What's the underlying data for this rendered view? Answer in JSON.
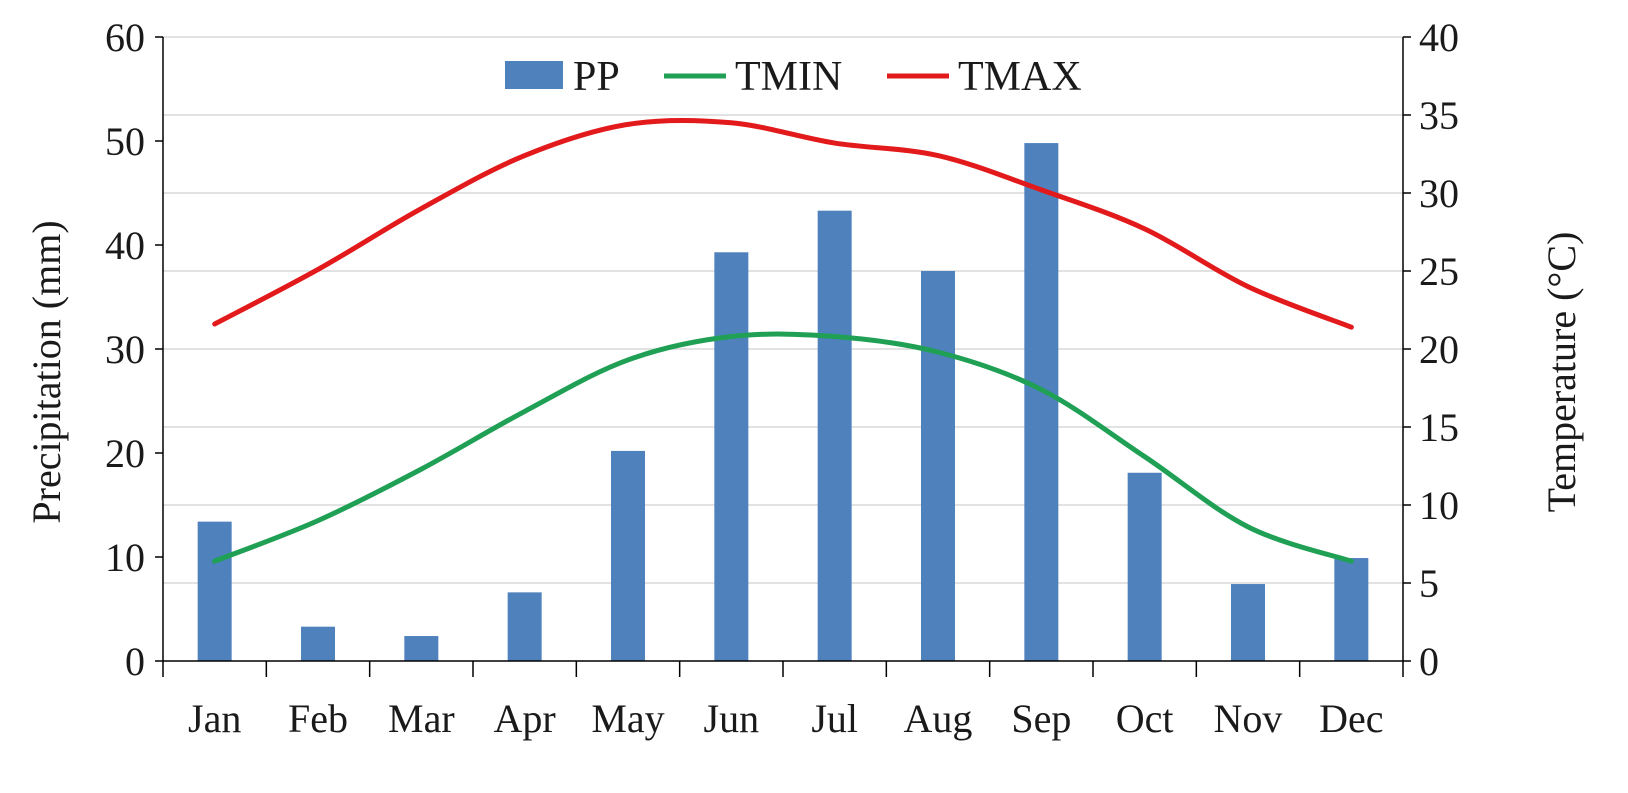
{
  "chart_data": {
    "type": "bar",
    "categories": [
      "Jan",
      "Feb",
      "Mar",
      "Apr",
      "May",
      "Jun",
      "Jul",
      "Aug",
      "Sep",
      "Oct",
      "Nov",
      "Dec"
    ],
    "series": [
      {
        "name": "PP",
        "kind": "bar",
        "axis": "left",
        "color": "#4F81BD",
        "values": [
          13.4,
          3.3,
          2.4,
          6.6,
          20.2,
          39.3,
          43.3,
          37.5,
          49.8,
          18.1,
          7.4,
          9.9
        ]
      },
      {
        "name": "TMIN",
        "kind": "line",
        "axis": "right",
        "color": "#1FA055",
        "values": [
          6.4,
          9.0,
          12.3,
          16.0,
          19.3,
          20.8,
          20.8,
          19.8,
          17.4,
          13.1,
          8.6,
          6.4
        ]
      },
      {
        "name": "TMAX",
        "kind": "line",
        "axis": "right",
        "color": "#E31A1C",
        "values": [
          21.6,
          25.1,
          29.0,
          32.4,
          34.4,
          34.5,
          33.2,
          32.4,
          30.2,
          27.7,
          24.0,
          21.4
        ]
      }
    ],
    "ylabel": "Precipitation (mm)",
    "ylabel_right": "Temperature (°C)",
    "xlabel": "",
    "ylim": [
      0,
      60
    ],
    "ylim_right": [
      0,
      40
    ],
    "yticks": [
      "0",
      "10",
      "20",
      "30",
      "40",
      "50",
      "60"
    ],
    "yticks_right": [
      "0",
      "5",
      "10",
      "15",
      "20",
      "25",
      "30",
      "35",
      "40"
    ],
    "grid": "horizontal",
    "legend_position": "top-center",
    "smooth_lines": true
  }
}
